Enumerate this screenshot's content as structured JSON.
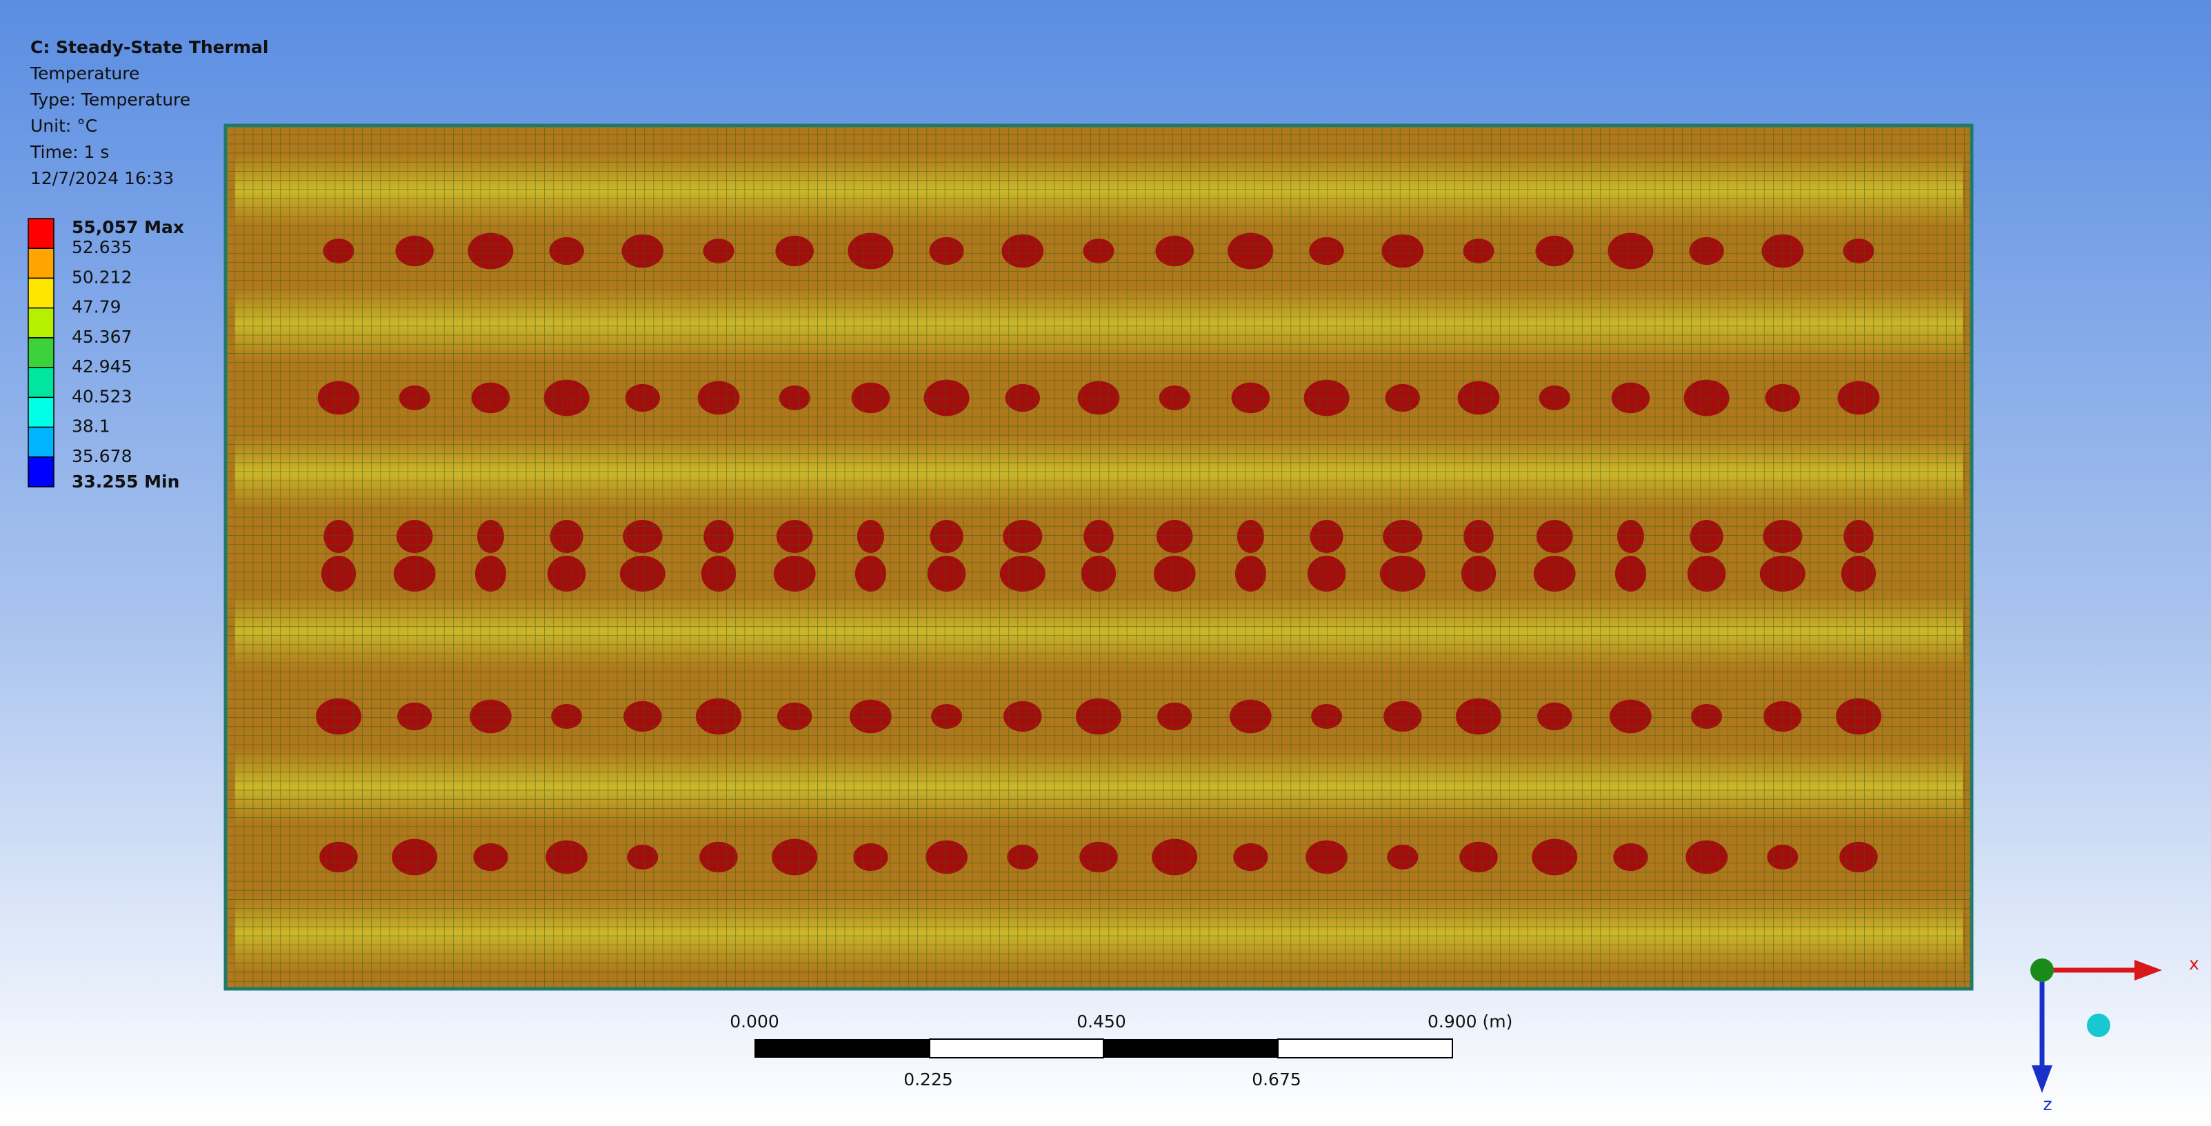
{
  "header": {
    "title": "C: Steady-State Thermal",
    "lines": [
      "Temperature",
      "Type: Temperature",
      "Unit: °C",
      "Time: 1 s",
      "12/7/2024 16:33"
    ]
  },
  "legend": {
    "labels": [
      "55,057 Max",
      "52.635",
      "50.212",
      "47.79",
      "45.367",
      "42.945",
      "40.523",
      "38.1",
      "35.678",
      "33.255 Min"
    ],
    "colors": [
      "#ff0000",
      "#ffa500",
      "#ffe600",
      "#b4f000",
      "#3cd23c",
      "#00e6a0",
      "#00ffe6",
      "#00b4ff",
      "#0000ff"
    ]
  },
  "scale_bar": {
    "top_labels": [
      "0.000",
      "0.450",
      "0.900 (m)"
    ],
    "bottom_labels": [
      "0.225",
      "0.675"
    ]
  },
  "triad": {
    "x_label": "x",
    "z_label": "z"
  }
}
